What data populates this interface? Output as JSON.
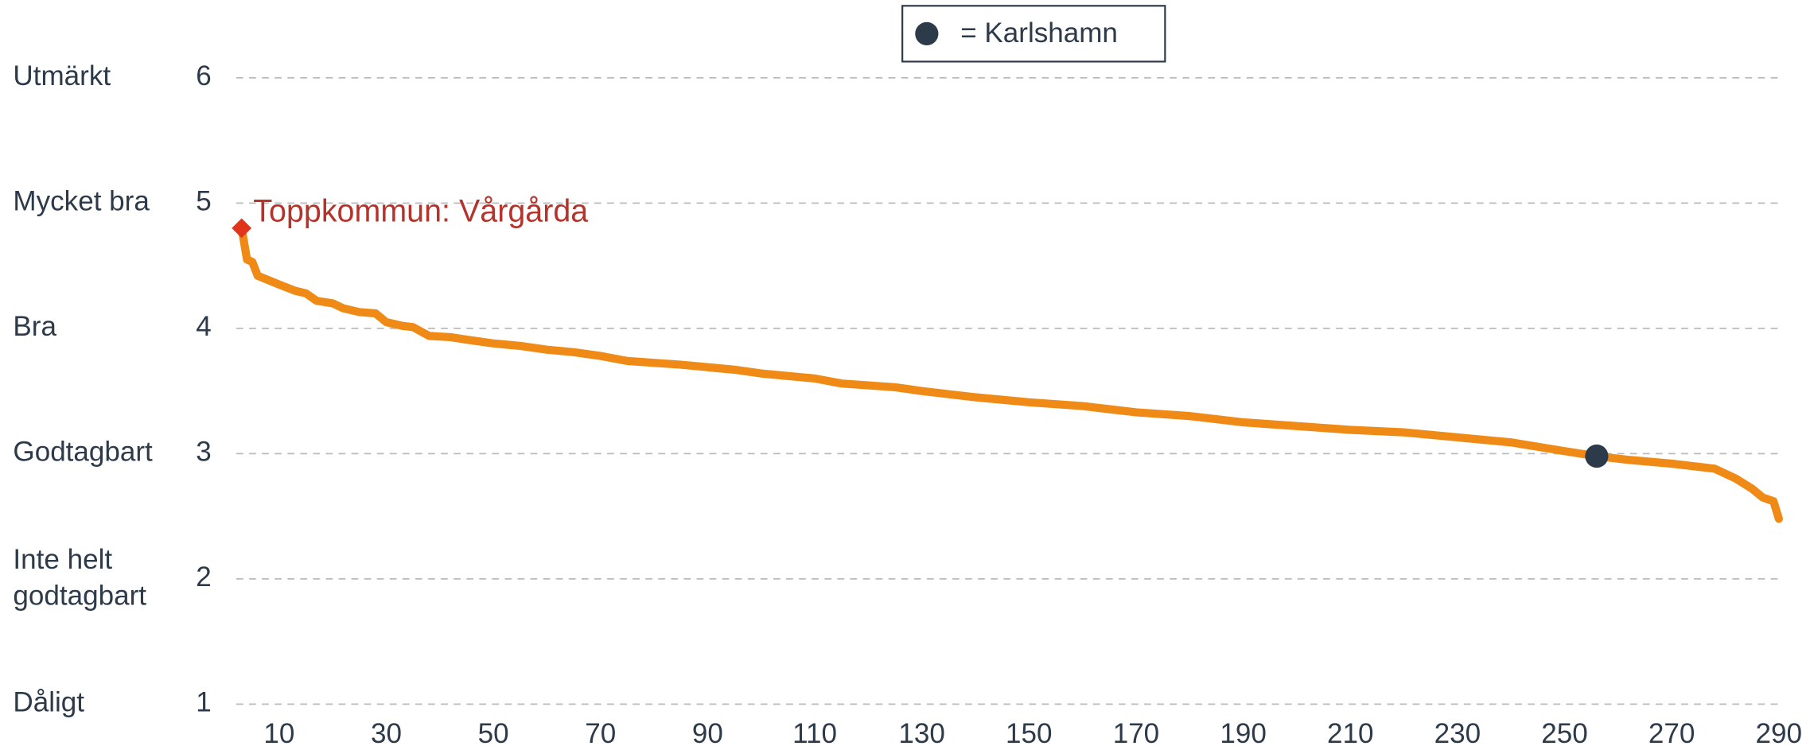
{
  "chart_data": {
    "type": "line",
    "legend_label": "= Karlshamn",
    "highlight": {
      "x": 256,
      "value": 2.98,
      "color": "#2d3a4a"
    },
    "top": {
      "label": "Toppkommun: Vårgårda",
      "x": 3,
      "value": 4.8,
      "color": "#e0341c",
      "label_color": "#b5332a"
    },
    "level_labels": [
      [
        "Dåligt"
      ],
      [
        "Inte helt",
        "godtagbart"
      ],
      [
        "Godtagbart"
      ],
      [
        "Bra"
      ],
      [
        "Mycket bra"
      ],
      [
        "Utmärkt"
      ]
    ],
    "series": [
      {
        "color": "#ef8a17",
        "x": [
          3,
          4,
          5,
          6,
          10,
          13,
          15,
          17,
          20,
          22,
          25,
          28,
          30,
          33,
          35,
          38,
          42,
          45,
          50,
          55,
          60,
          65,
          70,
          75,
          85,
          95,
          100,
          110,
          115,
          125,
          130,
          140,
          150,
          160,
          170,
          180,
          190,
          200,
          210,
          220,
          230,
          240,
          250,
          256,
          262,
          270,
          278,
          282,
          285,
          287,
          289,
          290
        ],
        "values": [
          4.8,
          4.55,
          4.53,
          4.42,
          4.35,
          4.3,
          4.28,
          4.22,
          4.2,
          4.16,
          4.13,
          4.12,
          4.05,
          4.02,
          4.01,
          3.94,
          3.93,
          3.91,
          3.88,
          3.86,
          3.83,
          3.81,
          3.78,
          3.74,
          3.71,
          3.67,
          3.64,
          3.6,
          3.56,
          3.53,
          3.5,
          3.45,
          3.41,
          3.38,
          3.33,
          3.3,
          3.25,
          3.22,
          3.19,
          3.17,
          3.13,
          3.09,
          3.02,
          2.98,
          2.95,
          2.92,
          2.88,
          2.8,
          2.72,
          2.65,
          2.62,
          2.48
        ]
      }
    ],
    "xlim": [
      2,
      290
    ],
    "ylim": [
      1,
      6
    ],
    "xticks": [
      10,
      30,
      50,
      70,
      90,
      110,
      130,
      150,
      170,
      190,
      210,
      230,
      250,
      270,
      290
    ],
    "yticks": [
      1,
      2,
      3,
      4,
      5,
      6
    ],
    "grid": true
  }
}
